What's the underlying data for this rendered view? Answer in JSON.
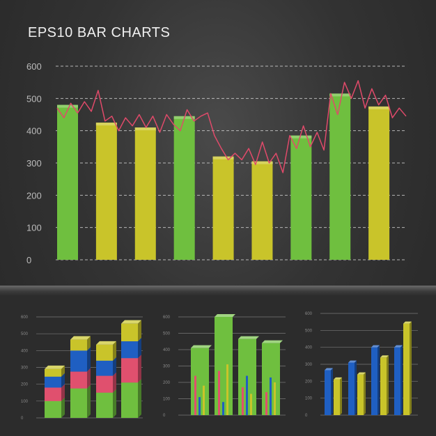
{
  "title": "EPS10 BAR CHARTS",
  "colors": {
    "green": "#6fbf3f",
    "yellow": "#c9c42a",
    "blue": "#1f5fc2",
    "pink": "#e0506e",
    "line": "#e04a6a"
  },
  "chart_data": [
    {
      "type": "bar",
      "title": "",
      "ylim": [
        0,
        600
      ],
      "yticks": [
        0,
        100,
        200,
        300,
        400,
        500,
        600
      ],
      "grid": true,
      "values": [
        480,
        425,
        410,
        445,
        320,
        305,
        385,
        515,
        475
      ],
      "bar_colors": [
        "green",
        "yellow",
        "yellow",
        "green",
        "yellow",
        "yellow",
        "green",
        "green",
        "yellow"
      ],
      "line_overlay": {
        "type": "line",
        "values": [
          470,
          440,
          485,
          455,
          490,
          460,
          525,
          430,
          445,
          400,
          440,
          415,
          450,
          410,
          445,
          395,
          450,
          420,
          400,
          465,
          430,
          445,
          455,
          385,
          345,
          310,
          330,
          310,
          345,
          295,
          365,
          300,
          330,
          270,
          385,
          345,
          415,
          350,
          395,
          340,
          515,
          450,
          550,
          500,
          555,
          470,
          530,
          480,
          510,
          440,
          470,
          445
        ]
      }
    },
    {
      "type": "bar",
      "stacked": true,
      "ylim": [
        0,
        600
      ],
      "yticks": [
        0,
        100,
        200,
        300,
        400,
        500,
        600
      ],
      "grid": true,
      "series": [
        {
          "color": "green",
          "values": [
            100,
            175,
            150,
            210
          ]
        },
        {
          "color": "pink",
          "values": [
            80,
            100,
            100,
            145
          ]
        },
        {
          "color": "blue",
          "values": [
            65,
            125,
            90,
            100
          ]
        },
        {
          "color": "yellow",
          "values": [
            45,
            65,
            95,
            105
          ]
        }
      ]
    },
    {
      "type": "bar",
      "ylim": [
        0,
        600
      ],
      "yticks": [
        0,
        100,
        200,
        300,
        400,
        500,
        600
      ],
      "grid": true,
      "outer_values": [
        410,
        600,
        465,
        440
      ],
      "inner_series": [
        {
          "color": "pink",
          "values": [
            240,
            270,
            170,
            140
          ]
        },
        {
          "color": "blue",
          "values": [
            110,
            80,
            240,
            230
          ]
        },
        {
          "color": "yellow",
          "values": [
            180,
            310,
            130,
            200
          ]
        }
      ]
    },
    {
      "type": "bar",
      "ylim": [
        0,
        600
      ],
      "yticks": [
        0,
        100,
        200,
        300,
        400,
        500,
        600
      ],
      "grid": true,
      "series": [
        {
          "color": "blue",
          "values": [
            265,
            310,
            355,
            400,
            400
          ]
        },
        {
          "color": "yellow",
          "values": [
            210,
            240,
            340,
            540
          ]
        }
      ]
    }
  ]
}
